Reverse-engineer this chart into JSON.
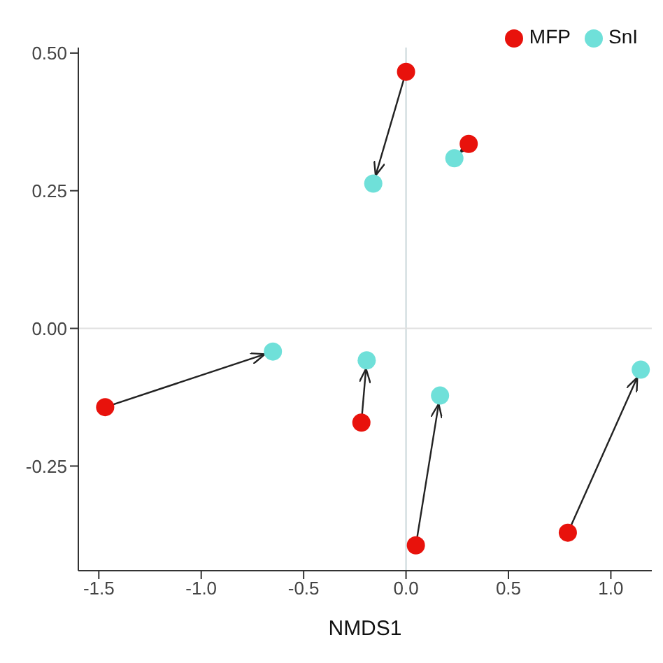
{
  "chart_data": {
    "type": "scatter",
    "xlabel": "NMDS1",
    "series": [
      {
        "name": "MFP",
        "color": "#e8120c",
        "x": [
          0,
          0.306,
          -1.469,
          -0.218,
          0.048,
          0.79
        ],
        "values": [
          0.466,
          0.335,
          -0.143,
          -0.171,
          -0.394,
          -0.371
        ]
      },
      {
        "name": "SnI",
        "color": "#6fe0d9",
        "x": [
          -0.16,
          0.236,
          -0.65,
          -0.192,
          0.166,
          1.146
        ],
        "values": [
          0.263,
          0.309,
          -0.042,
          -0.058,
          -0.122,
          -0.075
        ]
      }
    ],
    "xlim": [
      -1.6,
      1.2
    ],
    "xticks": [
      {
        "value": -1.5,
        "label": "-1.5"
      },
      {
        "value": -1,
        "label": "-1.0"
      },
      {
        "value": -0.5,
        "label": "-0.5"
      },
      {
        "value": 0,
        "label": "0.0"
      },
      {
        "value": 0.5,
        "label": "0.5"
      },
      {
        "value": 1,
        "label": "1.0"
      }
    ],
    "ylim": [
      -0.44,
      0.51
    ],
    "yticks": [
      {
        "value": -0.25,
        "label": "-0.25"
      },
      {
        "value": 0,
        "label": "0.00"
      },
      {
        "value": 0.25,
        "label": "0.25"
      },
      {
        "value": 0.5,
        "label": "0.50"
      }
    ],
    "ref_lines": [
      {
        "axis": "x",
        "value": 0,
        "color": "#c9d6d9"
      },
      {
        "axis": "y",
        "value": 0,
        "color": "#e0e0e0"
      }
    ],
    "marker": "circle",
    "legend": "top right",
    "grid": false
  }
}
